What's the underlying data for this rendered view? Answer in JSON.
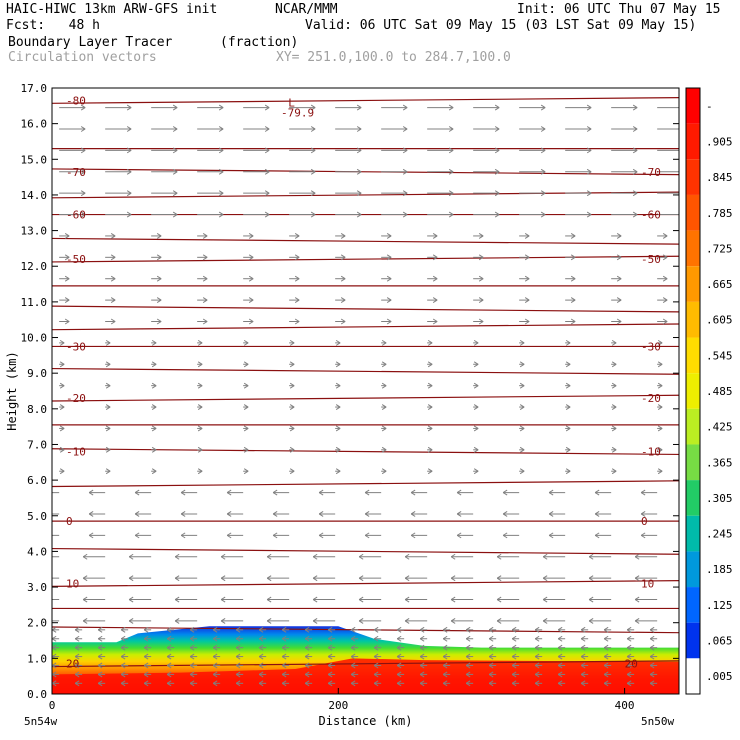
{
  "header": {
    "model": "HAIC-HIWC 13km ARW-GFS init",
    "org": "NCAR/MMM",
    "init": "Init: 06 UTC Thu 07 May 15",
    "fcst": "Fcst:   48 h",
    "valid": "Valid: 06 UTC Sat 09 May 15 (03 LST Sat 09 May 15)",
    "field": "Boundary Layer Tracer",
    "units": "(fraction)",
    "vectors": "Circulation vectors",
    "xy": "XY= 251.0,100.0 to 284.7,100.0"
  },
  "chart_data": {
    "type": "heatmap",
    "xlabel": "Distance (km)",
    "ylabel": "Height (km)",
    "xlim": [
      0,
      438
    ],
    "ylim": [
      0,
      17
    ],
    "x_ticks": [
      "0",
      "200",
      "400"
    ],
    "x_end_labels": [
      "5n54w",
      "5n50w"
    ],
    "y_ticks": [
      "0.0",
      "1.0",
      "2.0",
      "3.0",
      "4.0",
      "5.0",
      "6.0",
      "7.0",
      "8.0",
      "9.0",
      "10.0",
      "11.0",
      "12.0",
      "13.0",
      "14.0",
      "15.0",
      "16.0",
      "17.0"
    ],
    "colorbar": {
      "labels": [
        "-",
        ".905",
        ".845",
        ".785",
        ".725",
        ".665",
        ".605",
        ".545",
        ".485",
        ".425",
        ".365",
        ".305",
        ".245",
        ".185",
        ".125",
        ".065",
        ".005"
      ],
      "colors": [
        "#ff0000",
        "#ff1a00",
        "#ff3300",
        "#ff5500",
        "#ff7300",
        "#ff9900",
        "#ffbb00",
        "#ffdd00",
        "#eeee00",
        "#bbee22",
        "#77dd44",
        "#22cc66",
        "#00bbaa",
        "#0099dd",
        "#0066ff",
        "#0033ee",
        "#ffffff"
      ]
    },
    "tracer_layer": {
      "top_km": [
        [
          0,
          1.45
        ],
        [
          45,
          1.45
        ],
        [
          60,
          1.7
        ],
        [
          110,
          1.9
        ],
        [
          200,
          1.9
        ],
        [
          225,
          1.55
        ],
        [
          260,
          1.35
        ],
        [
          300,
          1.3
        ],
        [
          438,
          1.3
        ]
      ]
    },
    "temperature_contours": [
      {
        "label": "-80",
        "height_km": 16.65
      },
      {
        "label": "-79.9",
        "height_km": 16.7,
        "marker": "L"
      },
      {
        "label": "-70",
        "height_km": 14.65
      },
      {
        "label": "-60",
        "height_km": 13.45
      },
      {
        "label": "-50",
        "height_km": 12.2
      },
      {
        "label": "-30",
        "height_km": 9.75
      },
      {
        "label": "-20",
        "height_km": 8.3
      },
      {
        "label": "-10",
        "height_km": 6.8
      },
      {
        "label": "0",
        "height_km": 4.85
      },
      {
        "label": "10",
        "height_km": 3.1
      },
      {
        "label": "20",
        "height_km": 0.85
      }
    ],
    "contour_levels_km": [
      16.65,
      15.3,
      14.65,
      14.0,
      13.45,
      12.7,
      12.2,
      11.45,
      10.8,
      10.3,
      9.75,
      9.05,
      8.3,
      7.55,
      6.8,
      5.9,
      4.85,
      4.0,
      3.1,
      2.4,
      1.8,
      0.85
    ],
    "vectors": {
      "upper_direction": "east",
      "lower_direction": "west",
      "reversal_km": 6.2
    }
  },
  "colors": {
    "contour": "#8b1010",
    "vector": "#808080",
    "frame": "#000000"
  }
}
